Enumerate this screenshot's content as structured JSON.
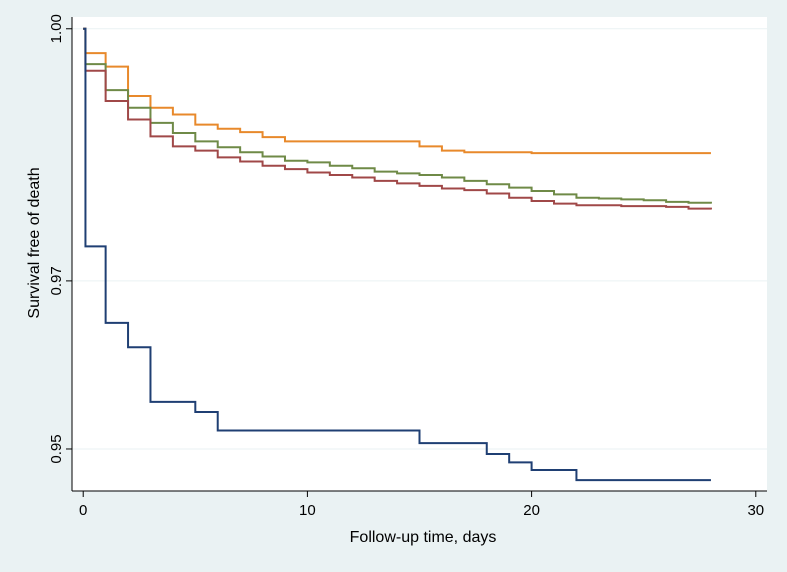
{
  "chart_data": {
    "type": "line",
    "step": true,
    "xlabel": "Follow-up time, days",
    "ylabel": "Survival free of death",
    "xlim": [
      -0.5,
      30.5
    ],
    "ylim": [
      0.945,
      1.0014
    ],
    "xticks": [
      0,
      10,
      20,
      30
    ],
    "xtick_labels": [
      "0",
      "10",
      "20",
      "30"
    ],
    "yticks": [
      0.95,
      0.97,
      1.0
    ],
    "ytick_labels": [
      "0.95",
      "0.97",
      "1.00"
    ],
    "grid": true,
    "series": [
      {
        "name": "orange",
        "color": "#e8892b",
        "x": [
          0,
          0.1,
          1,
          2,
          3,
          4,
          5,
          6,
          7,
          8,
          9,
          15,
          16,
          17,
          20,
          28
        ],
        "y": [
          1.0,
          0.9971,
          0.9955,
          0.992,
          0.9906,
          0.9898,
          0.9886,
          0.9881,
          0.9877,
          0.9871,
          0.9866,
          0.986,
          0.9855,
          0.9853,
          0.9852,
          0.9852
        ]
      },
      {
        "name": "green",
        "color": "#6f8a47",
        "x": [
          0,
          0.1,
          1,
          2,
          3,
          4,
          5,
          6,
          7,
          8,
          9,
          10,
          11,
          12,
          13,
          14,
          15,
          16,
          17,
          18,
          19,
          20,
          21,
          22,
          23,
          24,
          25,
          26,
          27,
          28
        ],
        "y": [
          1.0,
          0.9958,
          0.9927,
          0.9906,
          0.9888,
          0.9876,
          0.9866,
          0.9859,
          0.9853,
          0.9848,
          0.9843,
          0.9841,
          0.9837,
          0.9834,
          0.983,
          0.9828,
          0.9826,
          0.9823,
          0.9819,
          0.9815,
          0.9811,
          0.9807,
          0.9803,
          0.9799,
          0.9798,
          0.9797,
          0.9796,
          0.9794,
          0.9793,
          0.9792
        ]
      },
      {
        "name": "red",
        "color": "#a04848",
        "x": [
          0,
          0.1,
          1,
          2,
          3,
          4,
          5,
          6,
          7,
          8,
          9,
          10,
          11,
          12,
          13,
          14,
          15,
          16,
          17,
          18,
          19,
          20,
          21,
          22,
          23,
          24,
          25,
          26,
          27,
          28
        ],
        "y": [
          1.0,
          0.995,
          0.9914,
          0.9892,
          0.9872,
          0.986,
          0.9855,
          0.9847,
          0.9842,
          0.9837,
          0.9833,
          0.9829,
          0.9826,
          0.9823,
          0.9819,
          0.9816,
          0.9813,
          0.981,
          0.9808,
          0.9804,
          0.9799,
          0.9795,
          0.9792,
          0.979,
          0.979,
          0.9789,
          0.9789,
          0.9788,
          0.9786,
          0.9785
        ]
      },
      {
        "name": "blue",
        "color": "#1f3f73",
        "x": [
          0,
          0.1,
          1,
          2,
          3,
          5,
          6,
          15,
          18,
          19,
          20,
          22,
          28
        ],
        "y": [
          1.0,
          0.9741,
          0.965,
          0.9621,
          0.9556,
          0.9544,
          0.9522,
          0.9507,
          0.9494,
          0.9484,
          0.9475,
          0.9463,
          0.9463
        ]
      }
    ]
  }
}
